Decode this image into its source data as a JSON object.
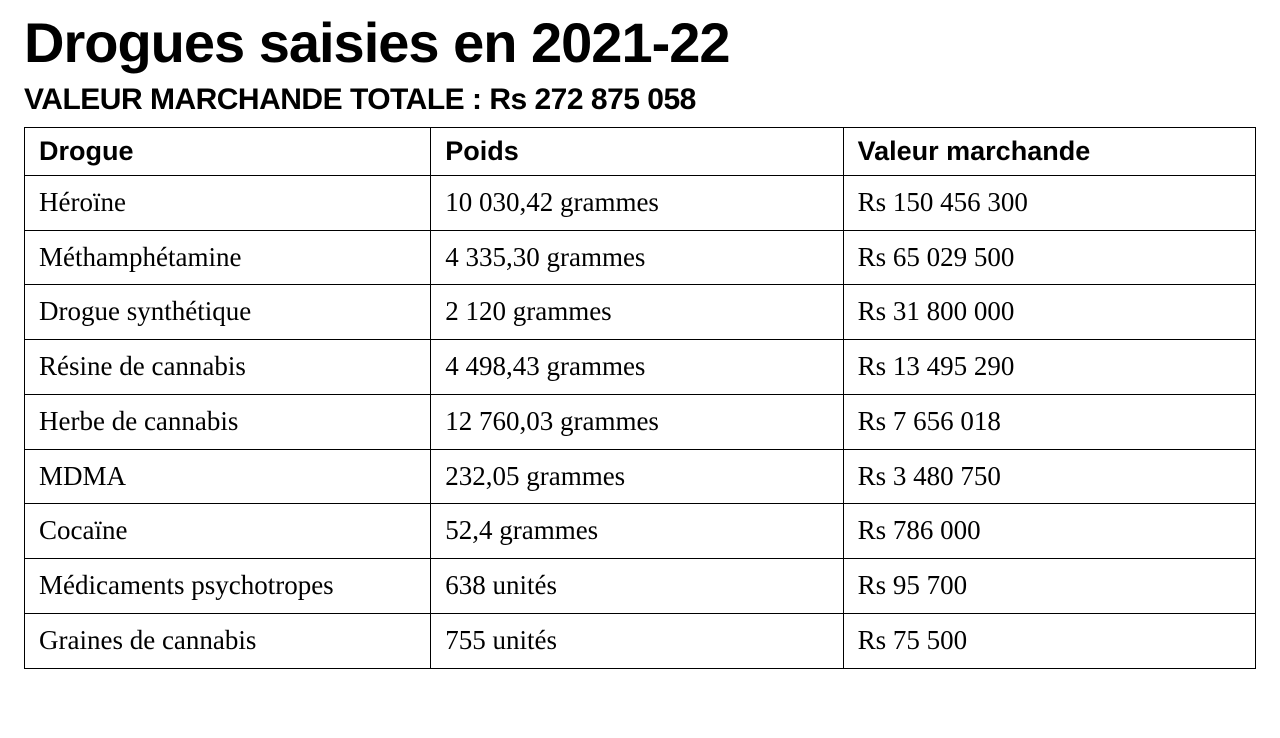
{
  "title": "Drogues saisies en 2021-22",
  "subtitle": "VALEUR MARCHANDE TOTALE : Rs 272 875 058",
  "table": {
    "type": "table",
    "border_color": "#000000",
    "background_color": "#ffffff",
    "header_font_family": "Arial",
    "header_font_weight": 800,
    "header_fontsize_pt": 20,
    "body_font_family": "Georgia",
    "body_fontsize_pt": 20,
    "column_widths_pct": [
      33,
      33.5,
      33.5
    ],
    "columns": [
      {
        "key": "drug",
        "label": "Drogue",
        "align": "left"
      },
      {
        "key": "weight",
        "label": "Poids",
        "align": "left"
      },
      {
        "key": "value",
        "label": "Valeur marchande",
        "align": "left"
      }
    ],
    "rows": [
      {
        "drug": "Héroïne",
        "weight": "10 030,42 grammes",
        "value": "Rs 150 456 300"
      },
      {
        "drug": "Méthamphétamine",
        "weight": " 4 335,30 grammes",
        "value": "Rs 65 029 500"
      },
      {
        "drug": "Drogue synthétique",
        "weight": "2 120 grammes",
        "value": "Rs 31 800 000"
      },
      {
        "drug": "Résine de cannabis",
        "weight": "4 498,43 grammes",
        "value": "Rs 13 495 290"
      },
      {
        "drug": "Herbe de cannabis",
        "weight": "12 760,03 grammes",
        "value": "Rs 7 656 018"
      },
      {
        "drug": "MDMA",
        "weight": "232,05 grammes",
        "value": "Rs 3 480 750"
      },
      {
        "drug": "Cocaïne",
        "weight": "52,4 grammes",
        "value": "Rs 786 000"
      },
      {
        "drug": "Médicaments psychotropes",
        "weight": "638 unités",
        "value": "Rs 95 700"
      },
      {
        "drug": "Graines de cannabis",
        "weight": "755 unités",
        "value": "Rs 75 500"
      }
    ]
  },
  "colors": {
    "text": "#000000",
    "background": "#ffffff",
    "border": "#000000"
  },
  "typography": {
    "title_fontsize_pt": 42,
    "title_font_family": "Arial",
    "title_font_weight": 900,
    "subtitle_fontsize_pt": 22,
    "subtitle_font_family": "Arial",
    "subtitle_font_weight": 800
  }
}
